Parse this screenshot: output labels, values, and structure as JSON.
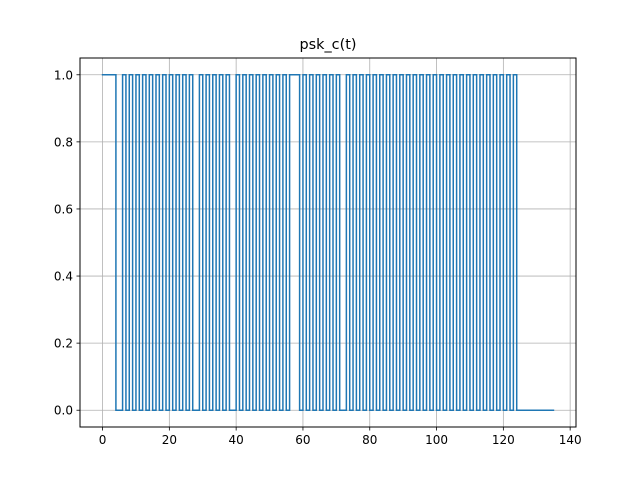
{
  "chart_data": {
    "type": "line",
    "drawstyle": "steps-post",
    "title": "psk_c(t)",
    "xlabel": "",
    "ylabel": "",
    "xlim": [
      -6.75,
      141.75
    ],
    "ylim": [
      -0.05,
      1.05
    ],
    "x_ticks": [
      0,
      20,
      40,
      60,
      80,
      100,
      120,
      140
    ],
    "x_tick_labels": [
      "0",
      "20",
      "40",
      "60",
      "80",
      "100",
      "120",
      "140"
    ],
    "y_ticks": [
      0.0,
      0.2,
      0.4,
      0.6,
      0.8,
      1.0
    ],
    "y_tick_labels": [
      "0.0",
      "0.2",
      "0.4",
      "0.6",
      "0.8",
      "1.0"
    ],
    "grid": true,
    "series": [
      {
        "name": "psk_c",
        "color": "#1f77b4",
        "x": [
          0,
          1,
          2,
          3,
          4,
          5,
          6,
          7,
          8,
          9,
          10,
          11,
          12,
          13,
          14,
          15,
          16,
          17,
          18,
          19,
          20,
          21,
          22,
          23,
          24,
          25,
          26,
          27,
          28,
          29,
          30,
          31,
          32,
          33,
          34,
          35,
          36,
          37,
          38,
          39,
          40,
          41,
          42,
          43,
          44,
          45,
          46,
          47,
          48,
          49,
          50,
          51,
          52,
          53,
          54,
          55,
          56,
          57,
          58,
          59,
          60,
          61,
          62,
          63,
          64,
          65,
          66,
          67,
          68,
          69,
          70,
          71,
          72,
          73,
          74,
          75,
          76,
          77,
          78,
          79,
          80,
          81,
          82,
          83,
          84,
          85,
          86,
          87,
          88,
          89,
          90,
          91,
          92,
          93,
          94,
          95,
          96,
          97,
          98,
          99,
          100,
          101,
          102,
          103,
          104,
          105,
          106,
          107,
          108,
          109,
          110,
          111,
          112,
          113,
          114,
          115,
          116,
          117,
          118,
          119,
          120,
          121,
          122,
          123,
          124,
          125,
          126,
          127,
          128,
          129,
          130,
          131,
          132,
          133,
          134,
          135
        ],
        "values": [
          1,
          1,
          1,
          1,
          0,
          0,
          1,
          0,
          1,
          0,
          1,
          0,
          1,
          0,
          1,
          0,
          1,
          0,
          1,
          0,
          1,
          0,
          1,
          0,
          1,
          0,
          1,
          0,
          0,
          1,
          0,
          1,
          0,
          1,
          0,
          1,
          0,
          1,
          0,
          0,
          1,
          0,
          1,
          0,
          1,
          0,
          1,
          0,
          1,
          0,
          1,
          0,
          1,
          0,
          1,
          0,
          1,
          1,
          1,
          0,
          1,
          0,
          1,
          0,
          1,
          0,
          1,
          0,
          1,
          0,
          1,
          0,
          0,
          1,
          0,
          1,
          0,
          1,
          0,
          1,
          0,
          1,
          0,
          1,
          0,
          1,
          0,
          1,
          0,
          1,
          0,
          1,
          0,
          1,
          0,
          1,
          0,
          1,
          0,
          1,
          0,
          1,
          0,
          1,
          0,
          1,
          0,
          1,
          0,
          1,
          0,
          1,
          0,
          1,
          0,
          1,
          0,
          1,
          0,
          1,
          0,
          1,
          0,
          1,
          0,
          0,
          0,
          0,
          0,
          0,
          0,
          0,
          0,
          0,
          0,
          0
        ]
      }
    ]
  }
}
